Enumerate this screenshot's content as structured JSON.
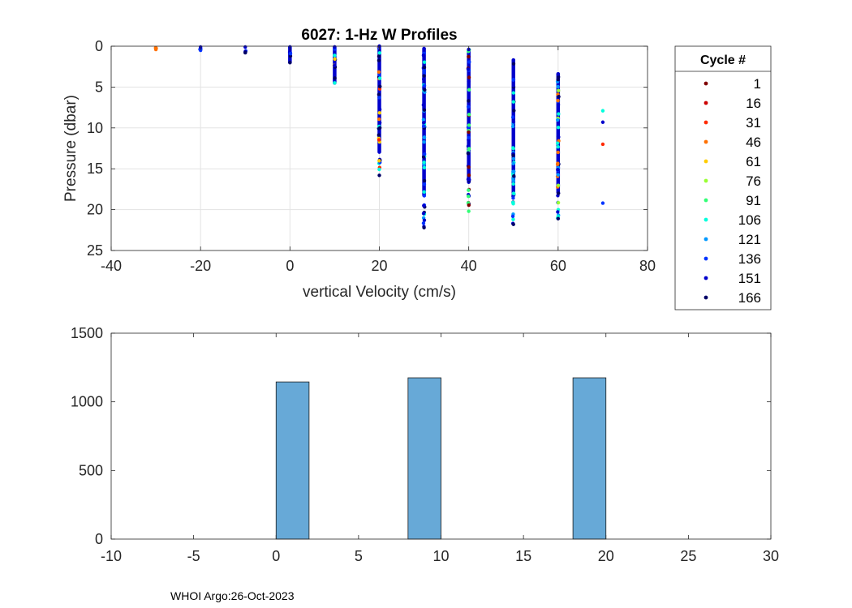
{
  "chart_data": [
    {
      "type": "scatter",
      "title": "6027: 1-Hz W Profiles",
      "xlabel": "vertical Velocity (cm/s)",
      "ylabel": "Pressure (dbar)",
      "xlim": [
        -40,
        80
      ],
      "ylim": [
        0,
        25
      ],
      "y_reversed": true,
      "grid": true,
      "xticks": [
        -40,
        -20,
        0,
        20,
        40,
        60,
        80
      ],
      "yticks": [
        0,
        5,
        10,
        15,
        20,
        25
      ],
      "legend": {
        "title": "Cycle #",
        "placement": "outside-right",
        "entries": [
          {
            "label": "1",
            "color": "#800000"
          },
          {
            "label": "16",
            "color": "#cc0000"
          },
          {
            "label": "31",
            "color": "#ff2a00"
          },
          {
            "label": "46",
            "color": "#ff7000"
          },
          {
            "label": "61",
            "color": "#ffcc00"
          },
          {
            "label": "76",
            "color": "#99ff33"
          },
          {
            "label": "91",
            "color": "#33ff77"
          },
          {
            "label": "106",
            "color": "#00ffdd"
          },
          {
            "label": "121",
            "color": "#0099ff"
          },
          {
            "label": "136",
            "color": "#0033ff"
          },
          {
            "label": "151",
            "color": "#0000cc"
          },
          {
            "label": "166",
            "color": "#000066"
          }
        ]
      },
      "columns": [
        {
          "x": -30,
          "pmin": 0.2,
          "pmax": 0.4,
          "colors": [
            "#ff7000"
          ]
        },
        {
          "x": -20,
          "pmin": 0.1,
          "pmax": 0.5,
          "colors": [
            "#0000cc",
            "#0033ff"
          ]
        },
        {
          "x": -10,
          "pmin": 0.1,
          "pmax": 0.8,
          "colors": [
            "#0000cc",
            "#0033ff",
            "#000066"
          ]
        },
        {
          "x": 0,
          "pmin": 0.1,
          "pmax": 2.0,
          "colors": [
            "#0000cc",
            "#0033ff",
            "#33ff77",
            "#000066"
          ]
        },
        {
          "x": 10,
          "pmin": 0.1,
          "pmax": 4.5,
          "colors": [
            "#0000cc",
            "#0033ff",
            "#ffcc00",
            "#000066",
            "#00ffdd"
          ]
        },
        {
          "x": 20,
          "pmin": 0.0,
          "pmax": 15.8,
          "colors": [
            "#0000cc",
            "#0033ff",
            "#ff2a00",
            "#ffcc00",
            "#ff7000",
            "#00ffdd",
            "#000066"
          ]
        },
        {
          "x": 30,
          "pmin": 0.3,
          "pmax": 22.2,
          "colors": [
            "#0000cc",
            "#0033ff",
            "#0099ff",
            "#00ffdd",
            "#000066"
          ]
        },
        {
          "x": 40,
          "pmin": 0.4,
          "pmax": 20.2,
          "colors": [
            "#0000cc",
            "#0033ff",
            "#000066",
            "#800000",
            "#33ff77"
          ]
        },
        {
          "x": 50,
          "pmin": 1.7,
          "pmax": 21.8,
          "colors": [
            "#0000cc",
            "#0033ff",
            "#0099ff",
            "#00ffdd",
            "#000066"
          ]
        },
        {
          "x": 60,
          "pmin": 3.4,
          "pmax": 21.1,
          "colors": [
            "#0000cc",
            "#0033ff",
            "#0099ff",
            "#00ffdd",
            "#99ff33",
            "#ff7000",
            "#000066"
          ]
        }
      ],
      "outliers": [
        {
          "x": 70,
          "p": 7.9,
          "color": "#00ffdd"
        },
        {
          "x": 70,
          "p": 9.3,
          "color": "#0000cc"
        },
        {
          "x": 70,
          "p": 12.0,
          "color": "#ff2a00"
        },
        {
          "x": 70,
          "p": 19.2,
          "color": "#0033ff"
        }
      ]
    },
    {
      "type": "bar",
      "title": "",
      "xlabel": "",
      "ylabel": "",
      "xlim": [
        -10,
        30
      ],
      "ylim": [
        0,
        1500
      ],
      "grid": false,
      "xticks": [
        -10,
        -5,
        0,
        5,
        10,
        15,
        20,
        25,
        30
      ],
      "yticks": [
        0,
        500,
        1000,
        1500
      ],
      "bar_color": "#67a9d7",
      "bars": [
        {
          "from": 0,
          "to": 2,
          "value": 1145
        },
        {
          "from": 8,
          "to": 10,
          "value": 1175
        },
        {
          "from": 18,
          "to": 20,
          "value": 1175
        }
      ]
    }
  ],
  "footer": "WHOI Argo:26-Oct-2023"
}
